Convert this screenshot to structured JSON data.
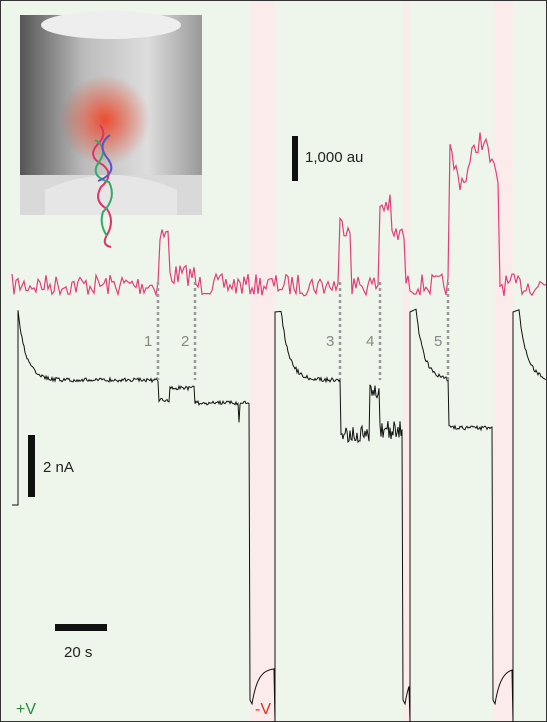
{
  "scale_bars": {
    "fluorescence": "1,000 au",
    "current": "2 nA",
    "time": "20 s"
  },
  "events": [
    "1",
    "2",
    "3",
    "4",
    "5"
  ],
  "voltage": {
    "positive": "+V",
    "negative": "-V"
  }
}
